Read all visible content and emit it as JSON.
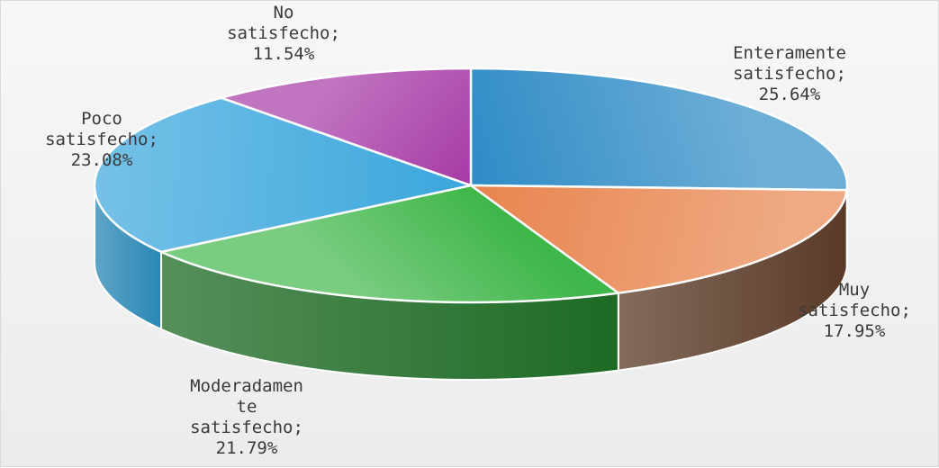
{
  "chart_data": {
    "type": "pie",
    "title": "",
    "legend": "none",
    "slices": [
      {
        "name": "Enteramente satisfecho",
        "value": 25.64,
        "label_lines": [
          "Enteramente",
          "satisfecho;",
          "25.64%"
        ],
        "color": "#2e8bc6",
        "side_color": "#1d5f88"
      },
      {
        "name": "Muy satisfecho",
        "value": 17.95,
        "label_lines": [
          "Muy",
          "satisfecho;",
          "17.95%"
        ],
        "color": "#e8844e",
        "side_color": "#5a3a26"
      },
      {
        "name": "Moderadamente satisfecho",
        "value": 21.79,
        "label_lines": [
          "Moderadamen",
          "te",
          "satisfecho;",
          "21.79%"
        ],
        "color": "#3fb64a",
        "side_color": "#1d6a24"
      },
      {
        "name": "Poco satisfecho",
        "value": 23.08,
        "label_lines": [
          "Poco",
          "satisfecho;",
          "23.08%"
        ],
        "color": "#3aa6dc",
        "side_color": "#2a87b4"
      },
      {
        "name": "No satisfecho",
        "value": 11.54,
        "label_lines": [
          "No",
          "satisfecho;",
          "11.54%"
        ],
        "color": "#a63aa6",
        "side_color": "#6f2470"
      }
    ]
  }
}
